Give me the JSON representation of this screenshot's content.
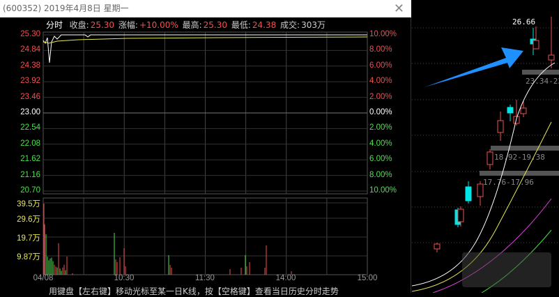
{
  "window": {
    "title": "(600352) 2019年4月8日 星期一",
    "close_icon": "close-icon"
  },
  "header": {
    "mode": "分时",
    "close_label": "收盘:",
    "close_value": "25.30",
    "change_label": "涨幅:",
    "change_value": "+10.00%",
    "high_label": "最高:",
    "high_value": "25.30",
    "low_label": "最低:",
    "low_value": "24.38",
    "volume_label": "成交:",
    "volume_value": "303万"
  },
  "price_axis": [
    "25.30",
    "24.84",
    "24.38",
    "23.92",
    "23.46",
    "23.00",
    "22.54",
    "22.08",
    "21.62",
    "21.16",
    "20.70"
  ],
  "pct_axis": [
    "10.00%",
    "8.00%",
    "6.00%",
    "4.00%",
    "2.00%",
    "0.00%",
    "2.00%",
    "4.00%",
    "6.00%",
    "8.00%",
    "10.00%"
  ],
  "volume_axis": [
    "39.5万",
    "29.6万",
    "19.7万",
    "9.87万"
  ],
  "time_axis": [
    "04/08",
    "10:30",
    "11:30",
    "14:00",
    "15:00"
  ],
  "footer": "用键盘【左右键】移动光标至某一日K线，按【空格键】查看当日历史分时走势",
  "colors": {
    "up": "#f05050",
    "down": "#50e050",
    "flat": "#ffffff",
    "avg": "#e8e850",
    "axis_vol": "#e8e850",
    "cyan": "#00e5e5",
    "arrow": "#1e90ff"
  },
  "volume_bars": [
    {
      "v": 395,
      "c": "up"
    },
    {
      "v": 280,
      "c": "up"
    },
    {
      "v": 225,
      "c": "down"
    },
    {
      "v": 100,
      "c": "down"
    },
    {
      "v": 80,
      "c": "down"
    },
    {
      "v": 90,
      "c": "down"
    },
    {
      "v": 95,
      "c": "down"
    },
    {
      "v": 75,
      "c": "down"
    },
    {
      "v": 55,
      "c": "up"
    },
    {
      "v": 45,
      "c": "up"
    },
    {
      "v": 40,
      "c": "down"
    },
    {
      "v": 175,
      "c": "up"
    },
    {
      "v": 35,
      "c": "down"
    },
    {
      "v": 22,
      "c": "down"
    },
    {
      "v": 40,
      "c": "up"
    },
    {
      "v": 55,
      "c": "up"
    },
    {
      "v": 25,
      "c": "down"
    },
    {
      "v": 100,
      "c": "up"
    },
    {
      "v": 8,
      "c": "up"
    }
  ],
  "kline": {
    "high_label": "26.66",
    "zones": [
      "23.34-23.",
      "18.92-19.38",
      "17.76-17.96"
    ]
  }
}
